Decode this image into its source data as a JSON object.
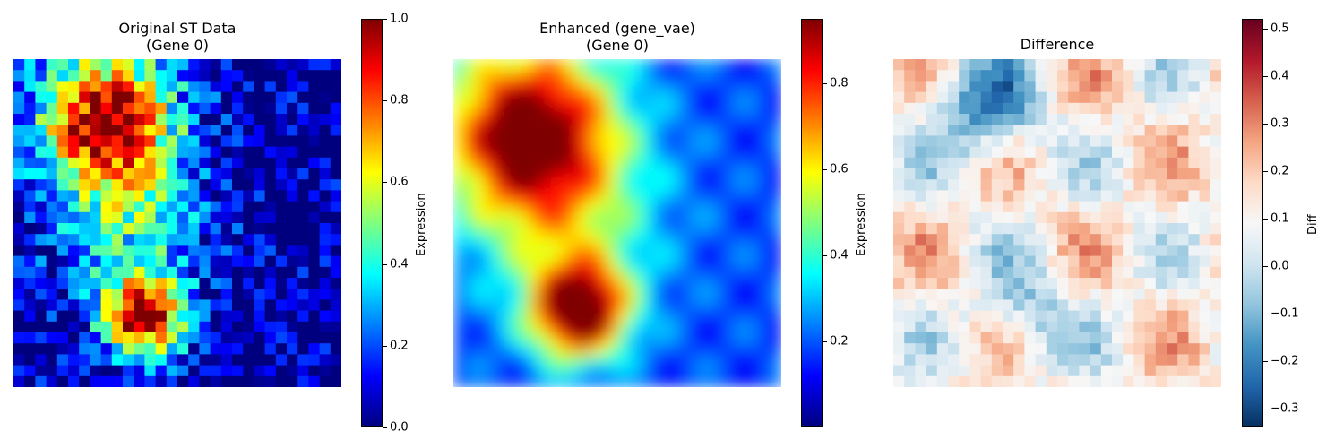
{
  "chart_data": [
    {
      "type": "heatmap",
      "title": "Original ST Data\n(Gene 0)",
      "title_lines": [
        "Original ST Data",
        "(Gene 0)"
      ],
      "colormap": "jet",
      "grid_size": [
        30,
        30
      ],
      "interpolation": "nearest",
      "colorbar": {
        "label": "Expression",
        "range": [
          0.0,
          1.0
        ],
        "ticks": [
          "0.0",
          "0.2",
          "0.4",
          "0.6",
          "0.8",
          "1.0"
        ]
      },
      "hotspots": [
        {
          "region": "upper-left",
          "peak_value": 1.0
        },
        {
          "region": "lower-center-left",
          "peak_value": 0.95
        }
      ]
    },
    {
      "type": "heatmap",
      "title": "Enhanced (gene_vae)\n(Gene 0)",
      "title_lines": [
        "Enhanced (gene_vae)",
        "(Gene 0)"
      ],
      "colormap": "jet",
      "interpolation": "smooth",
      "colorbar": {
        "label": "Expression",
        "range": [
          0.0,
          0.95
        ],
        "ticks": [
          "0.2",
          "0.4",
          "0.6",
          "0.8"
        ]
      },
      "hotspots": [
        {
          "region": "upper-left",
          "peak_value": 0.85
        },
        {
          "region": "lower-center-left",
          "peak_value": 0.9
        }
      ]
    },
    {
      "type": "heatmap",
      "title": "Difference",
      "title_lines": [
        "Difference"
      ],
      "colormap": "RdBu_r",
      "interpolation": "nearest",
      "colorbar": {
        "label": "Diff",
        "range": [
          -0.34,
          0.52
        ],
        "ticks": [
          "−0.3",
          "−0.2",
          "−0.1",
          "0.0",
          "0.1",
          "0.2",
          "0.3",
          "0.4",
          "0.5"
        ]
      }
    }
  ],
  "colors": {
    "jet": [
      "#00007f",
      "#0000ff",
      "#007fff",
      "#00ffff",
      "#7fff7f",
      "#ffff00",
      "#ff7f00",
      "#ff0000",
      "#7f0000"
    ],
    "rdbu_r": [
      "#053061",
      "#2166ac",
      "#4393c3",
      "#92c5de",
      "#d1e5f0",
      "#f7f7f7",
      "#fddbc7",
      "#f4a582",
      "#d6604d",
      "#b2182b",
      "#67001f"
    ]
  }
}
